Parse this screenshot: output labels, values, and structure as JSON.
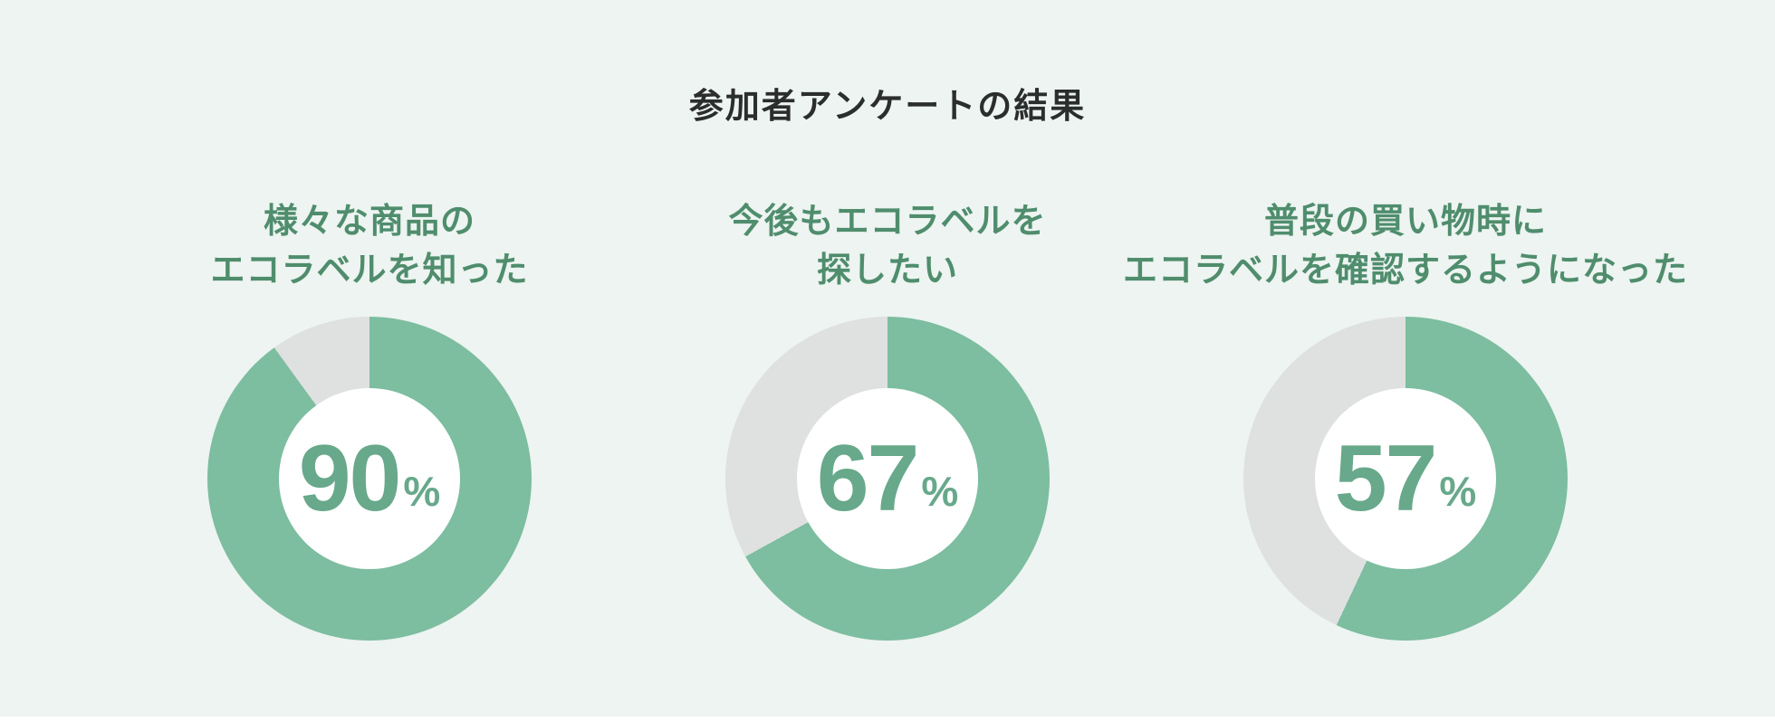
{
  "title": "参加者アンケートの結果",
  "charts": [
    {
      "label_line1": "様々な商品の",
      "label_line2": "エコラベルを知った",
      "value": "90",
      "unit": "%",
      "percent": 90
    },
    {
      "label_line1": "今後もエコラベルを",
      "label_line2": "探したい",
      "value": "67",
      "unit": "%",
      "percent": 67
    },
    {
      "label_line1": "普段の買い物時に",
      "label_line2": "エコラベルを確認するようになった",
      "value": "57",
      "unit": "%",
      "percent": 57
    }
  ],
  "chart_data": {
    "type": "pie",
    "subtype": "donut",
    "title": "参加者アンケートの結果",
    "unit": "%",
    "start_angle": "top",
    "direction": "clockwise",
    "legend": "none",
    "donuts": [
      {
        "label": "様々な商品の エコラベルを知った",
        "value": 90,
        "remainder": 10
      },
      {
        "label": "今後もエコラベルを 探したい",
        "value": 67,
        "remainder": 33
      },
      {
        "label": "普段の買い物時に エコラベルを確認するようになった",
        "value": 57,
        "remainder": 43
      }
    ],
    "segment_colors": {
      "value": "#7dbda0",
      "remainder": "#dee1e0"
    }
  },
  "colors": {
    "background": "#edf4f1",
    "ring_green": "#7dbda0",
    "ring_gray": "#dee1e0",
    "number_green": "#68a88b",
    "label_green": "#4f8d6d",
    "title_dark": "#2b2e2d",
    "hole_white": "#ffffff"
  }
}
